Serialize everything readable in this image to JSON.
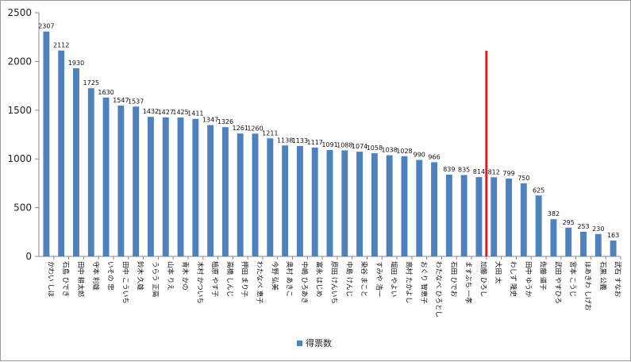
{
  "chart_data": {
    "type": "bar",
    "categories": [
      "かわい しほ",
      "石島 ひでき",
      "田中 耕太郎",
      "守本 利雄",
      "いその 忠",
      "田中 こういち",
      "鈴木 久雄",
      "うらう 正高",
      "山本 りえ",
      "青木 かの",
      "木村 かついち",
      "植原 やす子",
      "高橋 しんじ",
      "押田 まり子",
      "わたなべ 恵子",
      "今野 弘美",
      "奥村 あきこ",
      "中嶋 ひろあき",
      "富永 はじめ",
      "原田 けんいち",
      "中島 けんじ",
      "染谷 まこと",
      "すみや 浩一",
      "堀田 やよい",
      "高村 たかよし",
      "おぐり 智恵子",
      "わたなべ ひろとし",
      "石田 ひでお",
      "ますぶち 一孝",
      "加藤 ひろし",
      "大田 太",
      "わしず 隆史",
      "田中 ゆうか",
      "佐藤 道子",
      "武田 やすひろ",
      "宮本 こうじ",
      "ほあきわ しげお",
      "石黒 公義",
      "武石 すなお"
    ],
    "values": [
      2307,
      2112,
      1930,
      1725,
      1630,
      1547,
      1537,
      1432,
      1427,
      1425,
      1411,
      1347,
      1326,
      1261,
      1260,
      1211,
      1138,
      1133,
      1117,
      1091,
      1088,
      1074,
      1058,
      1038,
      1028,
      990,
      966,
      839,
      835,
      814,
      812,
      799,
      750,
      625,
      382,
      295,
      253,
      230,
      163
    ],
    "series": [
      {
        "name": "得票数",
        "color": "#4f81bd"
      }
    ],
    "ylim": [
      0,
      2500
    ],
    "yticks": [
      0,
      500,
      1000,
      1500,
      2000,
      2500
    ],
    "grid": false,
    "legend": "bottom",
    "annotation": {
      "type": "vertical-line",
      "between_categories": [
        "加藤 ひろし",
        "大田 太"
      ],
      "color": "#e31a1c"
    }
  }
}
